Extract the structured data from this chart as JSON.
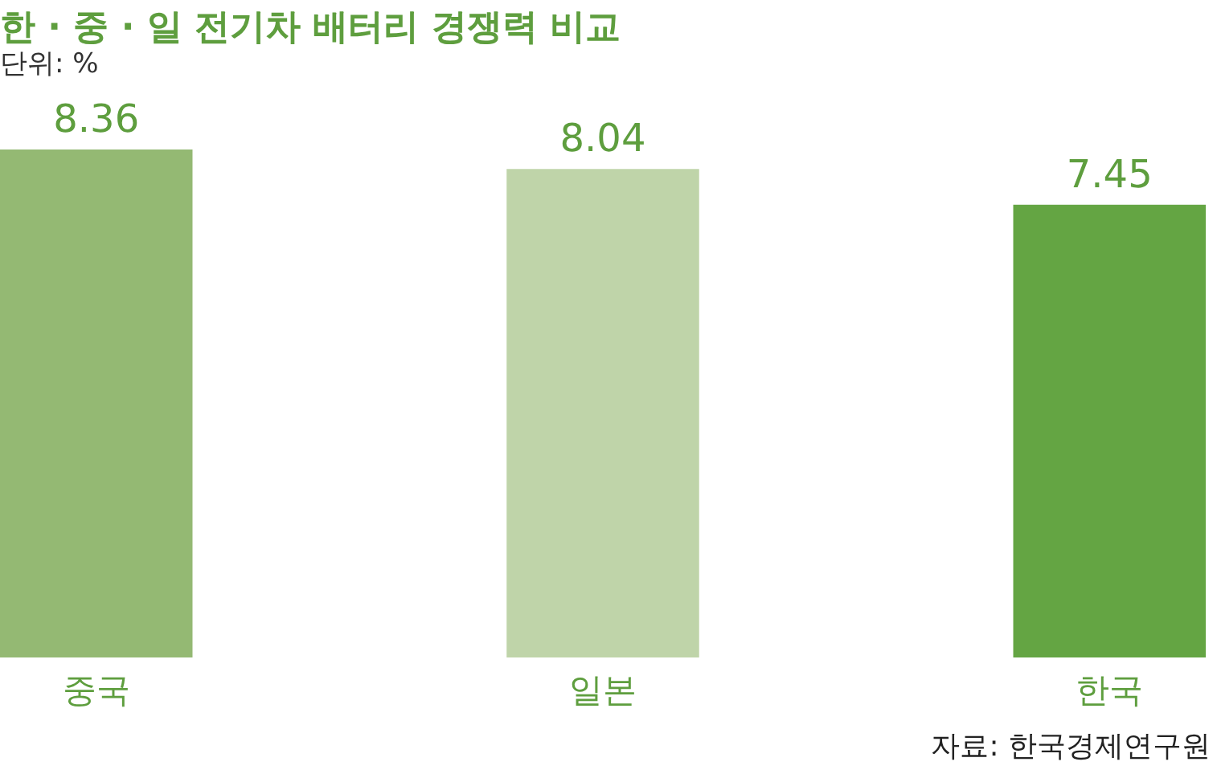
{
  "chart_data": {
    "type": "bar",
    "title": "한 · 중 · 일 전기차 배터리 경쟁력 비교",
    "subtitle": "단위: %",
    "categories": [
      "중국",
      "일본",
      "한국"
    ],
    "values": [
      8.36,
      8.04,
      7.45
    ],
    "colors": [
      "#94b973",
      "#bfd4a9",
      "#64a543"
    ],
    "data_labels": true,
    "tick_labels": "x",
    "grid": false,
    "legend": false,
    "annotations": [
      "자료: 한국경제연구원"
    ]
  }
}
